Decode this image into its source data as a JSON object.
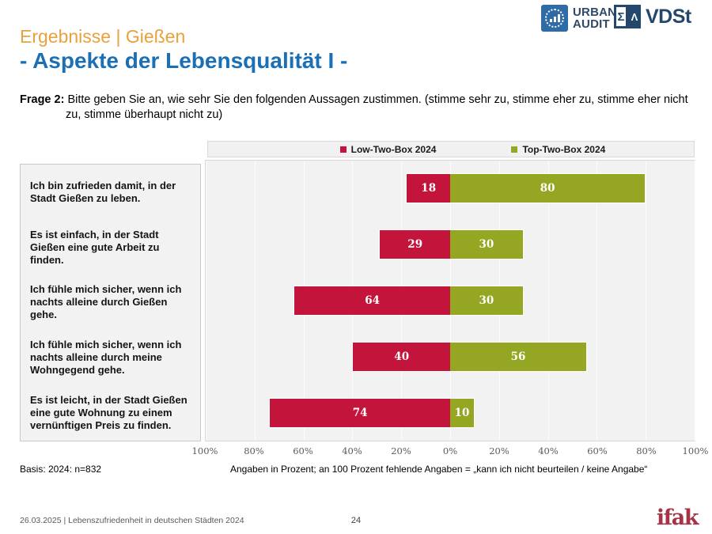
{
  "header": {
    "title_line1": "Ergebnisse | Gießen",
    "title_line2": "- Aspekte der Lebensqualität I -",
    "logos": {
      "urban_audit_line1": "URBAN",
      "urban_audit_line2": "AUDIT",
      "vdst_sigma": "Σ",
      "vdst_lambda": "Λ",
      "vdst_text": "VDSt",
      "ifak_text": "ifak"
    }
  },
  "question": {
    "label": "Frage 2:",
    "text": "Bitte geben Sie an, wie sehr Sie den folgenden Aussagen zustimmen. (stimme sehr zu, stimme eher zu, stimme eher nicht zu, stimme überhaupt nicht zu)"
  },
  "chart_data": {
    "type": "bar",
    "orientation": "horizontal-diverging",
    "categories": [
      "Ich bin zufrieden damit, in der Stadt Gießen zu leben.",
      "Es ist einfach, in der Stadt Gießen eine gute Arbeit zu finden.",
      "Ich fühle mich sicher, wenn ich nachts alleine durch Gießen gehe.",
      "Ich fühle mich sicher, wenn ich nachts alleine durch meine Wohngegend gehe.",
      "Es ist leicht, in der Stadt Gießen eine gute Wohnung zu einem vernünftigen Preis zu finden."
    ],
    "series": [
      {
        "name": "Low-Two-Box 2024",
        "direction": "left",
        "color": "#C3143C",
        "values": [
          18,
          29,
          64,
          40,
          74
        ]
      },
      {
        "name": "Top-Two-Box 2024",
        "direction": "right",
        "color": "#95A623",
        "values": [
          80,
          30,
          30,
          56,
          10
        ]
      }
    ],
    "axis_ticks": [
      "100%",
      "80%",
      "60%",
      "40%",
      "20%",
      "0%",
      "20%",
      "40%",
      "60%",
      "80%",
      "100%"
    ],
    "xlim": [
      -100,
      100
    ],
    "grid": true,
    "legend_position": "top",
    "unit": "percent"
  },
  "notes": {
    "basis": "Basis: 2024: n=832",
    "angaben": "Angaben in Prozent; an 100 Prozent fehlende Angaben = „kann ich nicht beurteilen / keine Angabe“"
  },
  "footer": {
    "left": "26.03.2025 | Lebenszufriedenheit in deutschen Städten 2024",
    "page_number": "24"
  },
  "colors": {
    "title_orange": "#E8A13C",
    "title_blue": "#1A6FB5",
    "bar_red": "#C3143C",
    "bar_green": "#95A623",
    "logo_navy": "#24486B",
    "ifak_red": "#A63446",
    "plot_background": "#F2F2F2"
  }
}
